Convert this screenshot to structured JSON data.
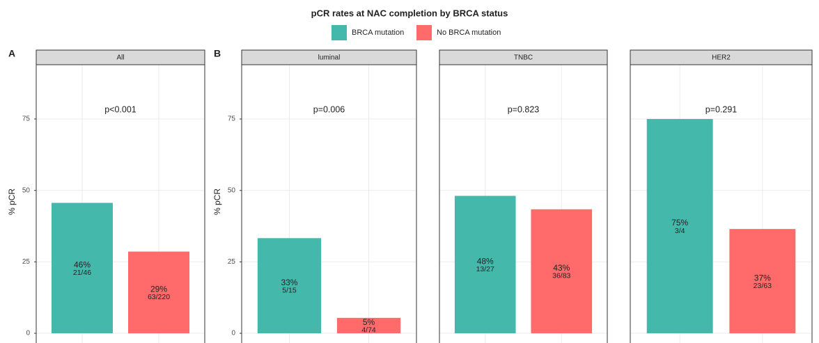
{
  "title": "pCR rates at NAC completion by BRCA status",
  "chart_data": [
    {
      "type": "bar",
      "panel_label": "A",
      "facet": "All",
      "annotation": "p<0.001",
      "ylabel": "% pCR",
      "ylim": [
        -3.4,
        94
      ],
      "yticks": [
        0,
        25,
        50,
        75
      ],
      "grid": true,
      "series": [
        {
          "name": "BRCA mutation",
          "color": "#45B8AC",
          "values": [
            45.65
          ],
          "value_labels": [
            "46%"
          ],
          "counts": [
            "21/46"
          ]
        },
        {
          "name": "No BRCA mutation",
          "color": "#FF6B6B",
          "values": [
            28.6
          ],
          "value_labels": [
            "29%"
          ],
          "counts": [
            "63/220"
          ]
        }
      ]
    },
    {
      "type": "bar",
      "panel_label": "B",
      "facet": "luminal",
      "annotation": "p=0.006",
      "ylabel": "% pCR",
      "ylim": [
        -3.4,
        94
      ],
      "yticks": [
        0,
        25,
        50,
        75
      ],
      "grid": true,
      "series": [
        {
          "name": "BRCA mutation",
          "color": "#45B8AC",
          "values": [
            33.3
          ],
          "value_labels": [
            "33%"
          ],
          "counts": [
            "5/15"
          ]
        },
        {
          "name": "No BRCA mutation",
          "color": "#FF6B6B",
          "values": [
            5.4
          ],
          "value_labels": [
            "5%"
          ],
          "counts": [
            "4/74"
          ]
        }
      ]
    },
    {
      "type": "bar",
      "facet": "TNBC",
      "annotation": "p=0.823",
      "ylim": [
        -3.4,
        94
      ],
      "yticks": [
        0,
        25,
        50,
        75
      ],
      "grid": true,
      "series": [
        {
          "name": "BRCA mutation",
          "color": "#45B8AC",
          "values": [
            48.1
          ],
          "value_labels": [
            "48%"
          ],
          "counts": [
            "13/27"
          ]
        },
        {
          "name": "No BRCA mutation",
          "color": "#FF6B6B",
          "values": [
            43.4
          ],
          "value_labels": [
            "43%"
          ],
          "counts": [
            "36/83"
          ]
        }
      ]
    },
    {
      "type": "bar",
      "facet": "HER2",
      "annotation": "p=0.291",
      "ylim": [
        -3.4,
        94
      ],
      "yticks": [
        0,
        25,
        50,
        75
      ],
      "grid": true,
      "series": [
        {
          "name": "BRCA mutation",
          "color": "#45B8AC",
          "values": [
            75
          ],
          "value_labels": [
            "75%"
          ],
          "counts": [
            "3/4"
          ]
        },
        {
          "name": "No BRCA mutation",
          "color": "#FF6B6B",
          "values": [
            36.5
          ],
          "value_labels": [
            "37%"
          ],
          "counts": [
            "23/63"
          ]
        }
      ]
    }
  ]
}
